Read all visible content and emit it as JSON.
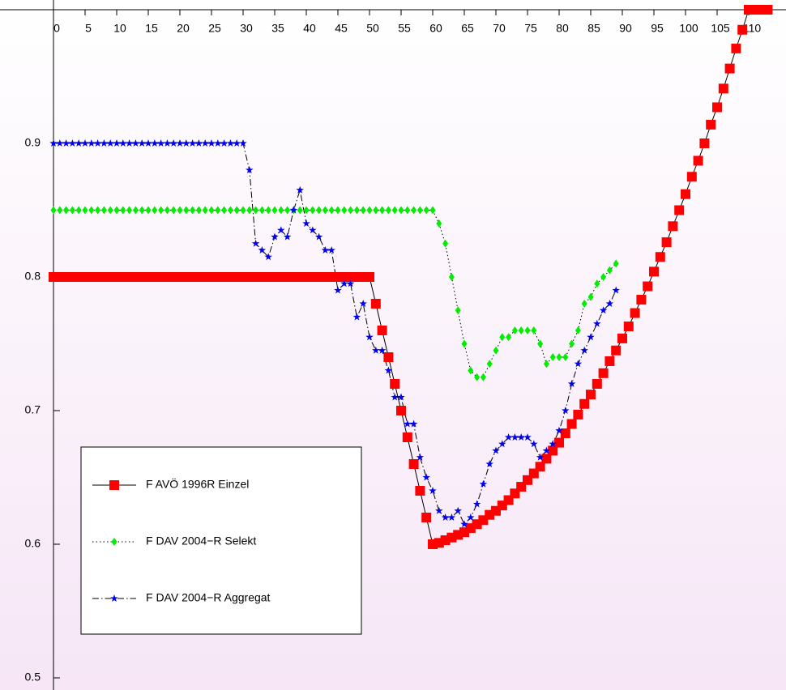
{
  "chart_data": {
    "type": "line",
    "x": [
      0,
      1,
      2,
      3,
      4,
      5,
      6,
      7,
      8,
      9,
      10,
      11,
      12,
      13,
      14,
      15,
      16,
      17,
      18,
      19,
      20,
      21,
      22,
      23,
      24,
      25,
      26,
      27,
      28,
      29,
      30,
      31,
      32,
      33,
      34,
      35,
      36,
      37,
      38,
      39,
      40,
      41,
      42,
      43,
      44,
      45,
      46,
      47,
      48,
      49,
      50,
      51,
      52,
      53,
      54,
      55,
      56,
      57,
      58,
      59,
      60,
      61,
      62,
      63,
      64,
      65,
      66,
      67,
      68,
      69,
      70,
      71,
      72,
      73,
      74,
      75,
      76,
      77,
      78,
      79,
      80,
      81,
      82,
      83,
      84,
      85,
      86,
      87,
      88,
      89,
      90,
      91,
      92,
      93,
      94,
      95,
      96,
      97,
      98,
      99,
      100,
      101,
      102,
      103,
      104,
      105,
      106,
      107,
      108,
      109,
      110,
      111,
      112,
      113
    ],
    "series": [
      {
        "name": "F AVÖ 1996R Einzel",
        "color": "#ff0000",
        "marker": "square",
        "line_style": "solid",
        "values": [
          0.8,
          0.8,
          0.8,
          0.8,
          0.8,
          0.8,
          0.8,
          0.8,
          0.8,
          0.8,
          0.8,
          0.8,
          0.8,
          0.8,
          0.8,
          0.8,
          0.8,
          0.8,
          0.8,
          0.8,
          0.8,
          0.8,
          0.8,
          0.8,
          0.8,
          0.8,
          0.8,
          0.8,
          0.8,
          0.8,
          0.8,
          0.8,
          0.8,
          0.8,
          0.8,
          0.8,
          0.8,
          0.8,
          0.8,
          0.8,
          0.8,
          0.8,
          0.8,
          0.8,
          0.8,
          0.8,
          0.8,
          0.8,
          0.8,
          0.8,
          0.8,
          0.78,
          0.76,
          0.74,
          0.72,
          0.7,
          0.68,
          0.66,
          0.64,
          0.62,
          0.6,
          0.601,
          0.603,
          0.605,
          0.607,
          0.609,
          0.612,
          0.615,
          0.618,
          0.622,
          0.625,
          0.629,
          0.633,
          0.638,
          0.643,
          0.648,
          0.653,
          0.658,
          0.664,
          0.67,
          0.676,
          0.683,
          0.69,
          0.697,
          0.705,
          0.712,
          0.72,
          0.728,
          0.737,
          0.745,
          0.754,
          0.763,
          0.773,
          0.783,
          0.793,
          0.804,
          0.815,
          0.826,
          0.838,
          0.85,
          0.862,
          0.875,
          0.887,
          0.9,
          0.914,
          0.927,
          0.941,
          0.956,
          0.971,
          0.985,
          1.0,
          1.0,
          1.0,
          1.0
        ]
      },
      {
        "name": "F DAV 2004−R Selekt",
        "color": "#00ee00",
        "marker": "diamond",
        "line_style": "dotted",
        "values": [
          0.85,
          0.85,
          0.85,
          0.85,
          0.85,
          0.85,
          0.85,
          0.85,
          0.85,
          0.85,
          0.85,
          0.85,
          0.85,
          0.85,
          0.85,
          0.85,
          0.85,
          0.85,
          0.85,
          0.85,
          0.85,
          0.85,
          0.85,
          0.85,
          0.85,
          0.85,
          0.85,
          0.85,
          0.85,
          0.85,
          0.85,
          0.85,
          0.85,
          0.85,
          0.85,
          0.85,
          0.85,
          0.85,
          0.85,
          0.85,
          0.85,
          0.85,
          0.85,
          0.85,
          0.85,
          0.85,
          0.85,
          0.85,
          0.85,
          0.85,
          0.85,
          0.85,
          0.85,
          0.85,
          0.85,
          0.85,
          0.85,
          0.85,
          0.85,
          0.85,
          0.85,
          0.84,
          0.825,
          0.8,
          0.775,
          0.75,
          0.73,
          0.725,
          0.725,
          0.735,
          0.745,
          0.755,
          0.755,
          0.76,
          0.76,
          0.76,
          0.76,
          0.75,
          0.735,
          0.74,
          0.74,
          0.74,
          0.75,
          0.76,
          0.78,
          0.785,
          0.795,
          0.8,
          0.805,
          0.81,
          null,
          null,
          null,
          null,
          null,
          null,
          null,
          null,
          null,
          null,
          null,
          null,
          null,
          null,
          null,
          null,
          null,
          null,
          null,
          null,
          null,
          null,
          null,
          null
        ]
      },
      {
        "name": "F DAV 2004−R Aggregat",
        "color": "#0000ee",
        "marker": "star",
        "line_style": "dashdot",
        "values": [
          0.9,
          0.9,
          0.9,
          0.9,
          0.9,
          0.9,
          0.9,
          0.9,
          0.9,
          0.9,
          0.9,
          0.9,
          0.9,
          0.9,
          0.9,
          0.9,
          0.9,
          0.9,
          0.9,
          0.9,
          0.9,
          0.9,
          0.9,
          0.9,
          0.9,
          0.9,
          0.9,
          0.9,
          0.9,
          0.9,
          0.9,
          0.88,
          0.825,
          0.82,
          0.815,
          0.83,
          0.835,
          0.83,
          0.85,
          0.865,
          0.84,
          0.835,
          0.83,
          0.82,
          0.82,
          0.79,
          0.795,
          0.795,
          0.77,
          0.78,
          0.755,
          0.745,
          0.745,
          0.73,
          0.71,
          0.71,
          0.69,
          0.69,
          0.665,
          0.65,
          0.64,
          0.625,
          0.62,
          0.62,
          0.625,
          0.615,
          0.62,
          0.63,
          0.645,
          0.66,
          0.67,
          0.675,
          0.68,
          0.68,
          0.68,
          0.68,
          0.675,
          0.665,
          0.67,
          0.675,
          0.685,
          0.7,
          0.72,
          0.735,
          0.745,
          0.755,
          0.765,
          0.775,
          0.78,
          0.79,
          null,
          null,
          null,
          null,
          null,
          null,
          null,
          null,
          null,
          null,
          null,
          null,
          null,
          null,
          null,
          null,
          null,
          null,
          null,
          null,
          null,
          null,
          null,
          null
        ]
      }
    ],
    "xlim": [
      0,
      115.5
    ],
    "xticks": [
      0,
      5,
      10,
      15,
      20,
      25,
      30,
      35,
      40,
      45,
      50,
      55,
      60,
      65,
      70,
      75,
      80,
      85,
      90,
      95,
      100,
      105,
      110
    ],
    "ylim": [
      0.49,
      1.0
    ],
    "yticks": [
      0.5,
      0.6,
      0.7,
      0.8,
      0.9
    ],
    "legend": "bottom-left"
  }
}
